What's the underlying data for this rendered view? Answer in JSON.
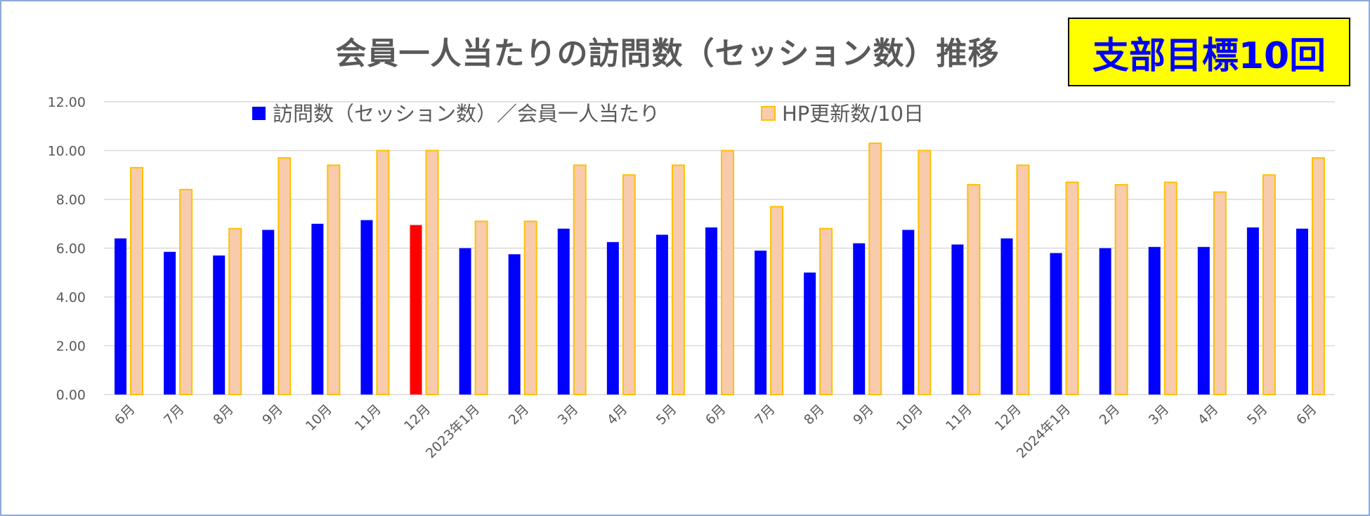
{
  "title": "会員一人当たりの訪問数（セッション数）推移",
  "badge": "支部目標10回",
  "colors": {
    "visits": "#0000ff",
    "highlight": "#ff0000",
    "hp_fill": "#f8cbad",
    "hp_border": "#ffc000",
    "grid": "#d9d9d9",
    "text": "#595959"
  },
  "chart_data": {
    "type": "bar",
    "title": "会員一人当たりの訪問数（セッション数）推移",
    "ylim": [
      0,
      12
    ],
    "yticks": [
      "0.00",
      "2.00",
      "4.00",
      "6.00",
      "8.00",
      "10.00",
      "12.00"
    ],
    "grid": true,
    "legend_position": "top",
    "categories": [
      "6月",
      "7月",
      "8月",
      "9月",
      "10月",
      "11月",
      "12月",
      "2023年1月",
      "2月",
      "3月",
      "4月",
      "5月",
      "6月",
      "7月",
      "8月",
      "9月",
      "10月",
      "11月",
      "12月",
      "2024年1月",
      "2月",
      "3月",
      "4月",
      "5月",
      "6月"
    ],
    "highlight_index": 6,
    "series": [
      {
        "name": "訪問数（セッション数）／会員一人当たり",
        "values": [
          6.4,
          5.85,
          5.7,
          6.75,
          7.0,
          7.15,
          6.95,
          6.0,
          5.75,
          6.8,
          6.25,
          6.55,
          6.85,
          5.9,
          5.0,
          6.2,
          6.75,
          6.15,
          6.4,
          5.8,
          6.0,
          6.05,
          6.05,
          6.85,
          6.8
        ]
      },
      {
        "name": "HP更新数/10日",
        "values": [
          9.3,
          8.4,
          6.8,
          9.7,
          9.4,
          10.0,
          10.0,
          7.1,
          7.1,
          9.4,
          9.0,
          9.4,
          10.0,
          7.7,
          6.8,
          10.3,
          10.0,
          8.6,
          9.4,
          8.7,
          8.6,
          8.7,
          8.3,
          9.0,
          9.7
        ]
      }
    ]
  }
}
